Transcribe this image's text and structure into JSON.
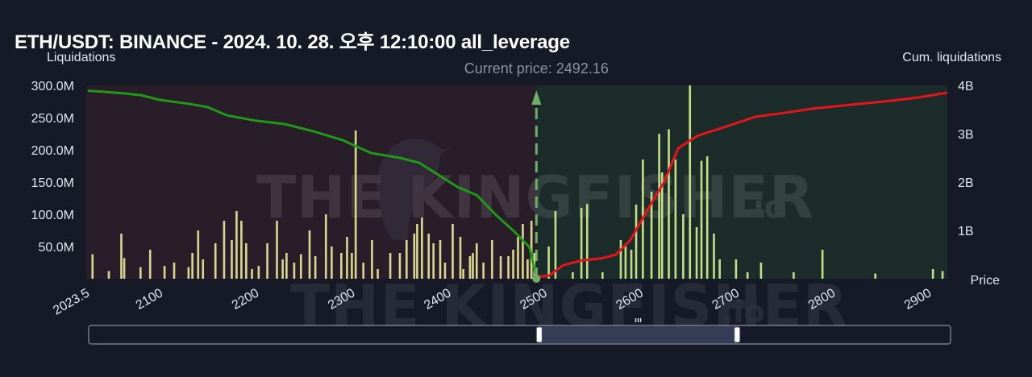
{
  "header": {
    "title": "ETH/USDT: BINANCE - 2024. 10. 28. 오후 12:10:00 all_leverage"
  },
  "watermark": {
    "text_main": "THE KINGFISHER",
    "text_suffix": ".io"
  },
  "colors": {
    "background": "#161a27",
    "short_region": "#2a1d2a",
    "long_region": "#1b2c2a",
    "cum_short_line": "#1e9a16",
    "cum_long_line": "#e8141a",
    "bar_long": "#c5df86",
    "bar_short": "#d8d990",
    "bar_alt": "#7f82c8",
    "current_price_line": "#6fae66",
    "navigator_window": "#353c55"
  },
  "chart_data": {
    "type": "bar",
    "title": "ETH/USDT: BINANCE - 2024. 10. 28. 오후 12:10:00 all_leverage",
    "xlabel": "Price",
    "ylabel": "Liquidations",
    "y2label": "Cum. liquidations",
    "current_price_label": "Current price: 2492.16",
    "current_price": 2492.16,
    "xlim": [
      2023.5,
      2920
    ],
    "ylim": [
      0,
      300000000
    ],
    "y2lim": [
      0,
      4000000000
    ],
    "x_ticks": [
      2023.5,
      2100,
      2200,
      2300,
      2400,
      2500,
      2600,
      2700,
      2800,
      2900
    ],
    "x_tick_labels": [
      "2023.5",
      "2100",
      "2200",
      "2300",
      "2400",
      "2500",
      "2600",
      "2700",
      "2800",
      "2900"
    ],
    "y_ticks": [
      50000000,
      100000000,
      150000000,
      200000000,
      250000000,
      300000000
    ],
    "y_tick_labels": [
      "50.0M",
      "100.0M",
      "150.0M",
      "200.0M",
      "250.0M",
      "300.0M"
    ],
    "y2_ticks": [
      1000000000,
      2000000000,
      3000000000,
      4000000000
    ],
    "y2_tick_labels": [
      "1B",
      "2B",
      "3B",
      "4B"
    ],
    "grid": false,
    "series": [
      {
        "name": "Cum. liquidations (short side)",
        "kind": "line",
        "points": [
          [
            2025,
            3890000000
          ],
          [
            2040,
            3870000000
          ],
          [
            2060,
            3840000000
          ],
          [
            2080,
            3800000000
          ],
          [
            2100,
            3700000000
          ],
          [
            2130,
            3620000000
          ],
          [
            2150,
            3550000000
          ],
          [
            2170,
            3380000000
          ],
          [
            2200,
            3270000000
          ],
          [
            2230,
            3200000000
          ],
          [
            2260,
            3050000000
          ],
          [
            2290,
            2870000000
          ],
          [
            2320,
            2600000000
          ],
          [
            2350,
            2500000000
          ],
          [
            2370,
            2400000000
          ],
          [
            2390,
            2150000000
          ],
          [
            2410,
            1900000000
          ],
          [
            2430,
            1730000000
          ],
          [
            2450,
            1320000000
          ],
          [
            2470,
            960000000
          ],
          [
            2485,
            650000000
          ],
          [
            2492,
            40000000
          ]
        ]
      },
      {
        "name": "Cum. liquidations (long side)",
        "kind": "line",
        "points": [
          [
            2493,
            40000000
          ],
          [
            2505,
            60000000
          ],
          [
            2520,
            280000000
          ],
          [
            2540,
            380000000
          ],
          [
            2560,
            420000000
          ],
          [
            2575,
            500000000
          ],
          [
            2590,
            800000000
          ],
          [
            2610,
            1500000000
          ],
          [
            2625,
            2000000000
          ],
          [
            2640,
            2700000000
          ],
          [
            2660,
            2960000000
          ],
          [
            2690,
            3150000000
          ],
          [
            2720,
            3350000000
          ],
          [
            2750,
            3430000000
          ],
          [
            2780,
            3520000000
          ],
          [
            2820,
            3600000000
          ],
          [
            2860,
            3680000000
          ],
          [
            2890,
            3750000000
          ],
          [
            2920,
            3850000000
          ]
        ]
      },
      {
        "name": "Liquidations (short side)",
        "kind": "bar",
        "points": [
          [
            2030,
            38000000
          ],
          [
            2047,
            12000000
          ],
          [
            2060,
            70000000
          ],
          [
            2063,
            32000000
          ],
          [
            2080,
            18000000
          ],
          [
            2090,
            45000000
          ],
          [
            2105,
            20000000
          ],
          [
            2115,
            25000000
          ],
          [
            2130,
            18000000
          ],
          [
            2134,
            40000000
          ],
          [
            2140,
            75000000
          ],
          [
            2145,
            30000000
          ],
          [
            2158,
            55000000
          ],
          [
            2167,
            90000000
          ],
          [
            2175,
            60000000
          ],
          [
            2180,
            105000000
          ],
          [
            2185,
            90000000
          ],
          [
            2190,
            55000000
          ],
          [
            2196,
            15000000
          ],
          [
            2203,
            20000000
          ],
          [
            2212,
            55000000
          ],
          [
            2222,
            90000000
          ],
          [
            2228,
            30000000
          ],
          [
            2232,
            40000000
          ],
          [
            2240,
            25000000
          ],
          [
            2247,
            38000000
          ],
          [
            2256,
            75000000
          ],
          [
            2262,
            35000000
          ],
          [
            2273,
            100000000
          ],
          [
            2279,
            50000000
          ],
          [
            2289,
            40000000
          ],
          [
            2295,
            65000000
          ],
          [
            2300,
            40000000
          ],
          [
            2304,
            230000000
          ],
          [
            2312,
            25000000
          ],
          [
            2321,
            60000000
          ],
          [
            2327,
            15000000
          ],
          [
            2340,
            40000000
          ],
          [
            2350,
            40000000
          ],
          [
            2357,
            60000000
          ],
          [
            2365,
            70000000
          ],
          [
            2368,
            85000000
          ],
          [
            2373,
            95000000
          ],
          [
            2380,
            70000000
          ],
          [
            2385,
            55000000
          ],
          [
            2392,
            60000000
          ],
          [
            2397,
            25000000
          ],
          [
            2405,
            85000000
          ],
          [
            2413,
            65000000
          ],
          [
            2416,
            15000000
          ],
          [
            2423,
            35000000
          ],
          [
            2426,
            40000000
          ],
          [
            2430,
            55000000
          ],
          [
            2437,
            25000000
          ],
          [
            2446,
            60000000
          ],
          [
            2455,
            35000000
          ],
          [
            2463,
            35000000
          ],
          [
            2468,
            45000000
          ],
          [
            2473,
            65000000
          ],
          [
            2478,
            85000000
          ],
          [
            2483,
            30000000
          ],
          [
            2487,
            90000000
          ],
          [
            2490,
            40000000
          ]
        ]
      },
      {
        "name": "Liquidations (long side)",
        "kind": "bar",
        "points": [
          [
            2505,
            50000000
          ],
          [
            2512,
            105000000
          ],
          [
            2530,
            10000000
          ],
          [
            2539,
            110000000
          ],
          [
            2545,
            116000000
          ],
          [
            2561,
            10000000
          ],
          [
            2580,
            60000000
          ],
          [
            2585,
            50000000
          ],
          [
            2591,
            45000000
          ],
          [
            2596,
            115000000
          ],
          [
            2603,
            185000000
          ],
          [
            2612,
            135000000
          ],
          [
            2620,
            225000000
          ],
          [
            2623,
            165000000
          ],
          [
            2630,
            232000000
          ],
          [
            2637,
            185000000
          ],
          [
            2645,
            100000000
          ],
          [
            2652,
            300000000
          ],
          [
            2659,
            80000000
          ],
          [
            2664,
            183000000
          ],
          [
            2670,
            190000000
          ],
          [
            2677,
            70000000
          ],
          [
            2683,
            30000000
          ],
          [
            2700,
            30000000
          ],
          [
            2712,
            10000000
          ],
          [
            2726,
            25000000
          ],
          [
            2760,
            10000000
          ],
          [
            2790,
            45000000
          ],
          [
            2845,
            8000000
          ],
          [
            2905,
            15000000
          ],
          [
            2915,
            12000000
          ]
        ]
      }
    ],
    "navigator": {
      "range": [
        2492.16,
        2698
      ]
    }
  }
}
